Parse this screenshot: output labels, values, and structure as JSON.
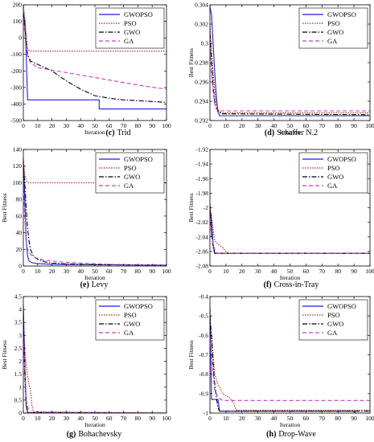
{
  "legend_entries": [
    "GWOPSO",
    "PSO",
    "GWO",
    "GA"
  ],
  "xlabel": "Iteration",
  "ylabel": "Best Fitness",
  "series_styles": [
    {
      "name": "GWOPSO",
      "color": "#1f1fd6",
      "dash": "solid"
    },
    {
      "name": "PSO",
      "color": "#a52a2a",
      "dash": "dotted"
    },
    {
      "name": "GWO",
      "color": "#000000",
      "dash": "dashdot"
    },
    {
      "name": "GA",
      "color": "#c040c0",
      "dash": "dashed"
    }
  ],
  "chart_data": [
    {
      "type": "line",
      "id": "c",
      "caption_letter": "(c)",
      "caption_name": "Trid",
      "xlabel": "Iteration",
      "ylabel": "",
      "xlim": [
        0,
        100
      ],
      "ylim": [
        -500,
        200
      ],
      "xticks": [
        0,
        10,
        20,
        30,
        40,
        50,
        60,
        70,
        80,
        90,
        100
      ],
      "yticks": [
        -500,
        -400,
        -300,
        -200,
        -100,
        0,
        100,
        200
      ],
      "ytick_labels": [
        "-500",
        "-400",
        "-300",
        "-200",
        "-100",
        "0",
        "100",
        "200"
      ],
      "series": [
        {
          "name": "GWOPSO",
          "x": [
            0,
            1,
            2,
            3,
            53,
            53,
            100
          ],
          "y": [
            150,
            100,
            -100,
            -375,
            -375,
            -430,
            -430
          ]
        },
        {
          "name": "PSO",
          "x": [
            0,
            1,
            2,
            3,
            5,
            100
          ],
          "y": [
            200,
            120,
            20,
            -70,
            -80,
            -80
          ]
        },
        {
          "name": "GWO",
          "x": [
            0,
            1,
            2,
            3,
            5,
            10,
            20,
            30,
            40,
            50,
            60,
            70,
            80,
            90,
            100
          ],
          "y": [
            150,
            80,
            -20,
            -100,
            -140,
            -160,
            -200,
            -260,
            -310,
            -350,
            -365,
            -375,
            -380,
            -385,
            -390
          ]
        },
        {
          "name": "GA",
          "x": [
            0,
            1,
            2,
            3,
            5,
            10,
            20,
            30,
            40,
            50,
            60,
            70,
            80,
            90,
            100
          ],
          "y": [
            100,
            40,
            -60,
            -110,
            -150,
            -180,
            -195,
            -210,
            -225,
            -240,
            -255,
            -270,
            -285,
            -298,
            -310
          ]
        }
      ],
      "legend": "top-right",
      "grid": false
    },
    {
      "type": "line",
      "id": "d",
      "caption_letter": "(d)",
      "caption_name": "Schaffer N.2",
      "xlabel": "Iteration",
      "ylabel": "Best Fitness",
      "xlim": [
        0,
        100
      ],
      "ylim": [
        0.292,
        0.304
      ],
      "xticks": [
        0,
        10,
        20,
        30,
        40,
        50,
        60,
        70,
        80,
        90,
        100
      ],
      "yticks": [
        0.292,
        0.294,
        0.296,
        0.298,
        0.3,
        0.302,
        0.304
      ],
      "ytick_labels": [
        "0.292",
        "0.294",
        "0.296",
        "0.298",
        "0.3",
        "0.302",
        "0.304"
      ],
      "series": [
        {
          "name": "GWOPSO",
          "x": [
            0,
            1,
            2,
            3,
            4,
            5,
            6,
            100
          ],
          "y": [
            0.3038,
            0.303,
            0.3,
            0.297,
            0.2945,
            0.2929,
            0.2925,
            0.2925
          ]
        },
        {
          "name": "PSO",
          "x": [
            0,
            1,
            2,
            3,
            4,
            5,
            6,
            8,
            100
          ],
          "y": [
            0.302,
            0.2995,
            0.297,
            0.295,
            0.2938,
            0.2932,
            0.2929,
            0.2928,
            0.2928
          ]
        },
        {
          "name": "GWO",
          "x": [
            0,
            1,
            2,
            3,
            4,
            5,
            7,
            100
          ],
          "y": [
            0.301,
            0.298,
            0.2955,
            0.294,
            0.2933,
            0.293,
            0.2927,
            0.2926
          ]
        },
        {
          "name": "GA",
          "x": [
            0,
            1,
            2,
            3,
            4,
            6,
            100
          ],
          "y": [
            0.3,
            0.297,
            0.295,
            0.2937,
            0.2932,
            0.293,
            0.293
          ]
        }
      ],
      "legend": "top-right",
      "grid": false
    },
    {
      "type": "line",
      "id": "e",
      "caption_letter": "(e)",
      "caption_name": "Levy",
      "xlabel": "Iteration",
      "ylabel": "Best Fitness",
      "xlim": [
        0,
        100
      ],
      "ylim": [
        0,
        140
      ],
      "xticks": [
        0,
        10,
        20,
        30,
        40,
        50,
        60,
        70,
        80,
        90,
        100
      ],
      "yticks": [
        0,
        20,
        40,
        60,
        80,
        100,
        120,
        140
      ],
      "ytick_labels": [
        "0",
        "20",
        "40",
        "60",
        "80",
        "100",
        "120",
        "140"
      ],
      "series": [
        {
          "name": "GWOPSO",
          "x": [
            0,
            1,
            2,
            3,
            4,
            6,
            10,
            20,
            100
          ],
          "y": [
            130,
            80,
            30,
            12,
            6,
            4,
            3,
            2,
            1
          ]
        },
        {
          "name": "PSO",
          "x": [
            0,
            1,
            2,
            3,
            5,
            100
          ],
          "y": [
            128,
            110,
            103,
            100,
            100,
            100
          ]
        },
        {
          "name": "GWO",
          "x": [
            0,
            1,
            2,
            3,
            4,
            5,
            7,
            10,
            15,
            20,
            30,
            50,
            100
          ],
          "y": [
            120,
            100,
            70,
            45,
            30,
            20,
            12,
            8,
            5,
            3.5,
            2.5,
            1.5,
            1
          ]
        },
        {
          "name": "GA",
          "x": [
            0,
            1,
            2,
            3,
            5,
            8,
            15,
            25,
            40,
            60,
            100
          ],
          "y": [
            100,
            60,
            30,
            20,
            14,
            10,
            7,
            5,
            3.5,
            2,
            1
          ]
        }
      ],
      "legend": "top-right",
      "grid": false
    },
    {
      "type": "line",
      "id": "f",
      "caption_letter": "(f)",
      "caption_name": "Cross-in-Tray",
      "xlabel": "Iteration",
      "ylabel": "Best Fitness",
      "xlim": [
        0,
        100
      ],
      "ylim": [
        -2.08,
        -1.92
      ],
      "xticks": [
        0,
        10,
        20,
        30,
        40,
        50,
        60,
        70,
        80,
        90,
        100
      ],
      "yticks": [
        -2.08,
        -2.06,
        -2.04,
        -2.02,
        -2,
        -1.98,
        -1.96,
        -1.94,
        -1.92
      ],
      "ytick_labels": [
        "-2.08",
        "-2.06",
        "-2.04",
        "-2.02",
        "-2",
        "-1.98",
        "-1.96",
        "-1.94",
        "-1.92"
      ],
      "series": [
        {
          "name": "GWOPSO",
          "x": [
            0,
            1,
            2,
            3,
            100
          ],
          "y": [
            -2.0,
            -2.02,
            -2.05,
            -2.0626,
            -2.0626
          ]
        },
        {
          "name": "PSO",
          "x": [
            0,
            1,
            2,
            3,
            5,
            8,
            10,
            12,
            100
          ],
          "y": [
            -2.0,
            -2.01,
            -2.03,
            -2.045,
            -2.05,
            -2.055,
            -2.06,
            -2.0626,
            -2.0626
          ]
        },
        {
          "name": "GWO",
          "x": [
            0,
            1,
            2,
            3,
            100
          ],
          "y": [
            -1.995,
            -2.03,
            -2.055,
            -2.0626,
            -2.0626
          ]
        },
        {
          "name": "GA",
          "x": [
            0,
            1,
            3,
            5,
            100
          ],
          "y": [
            -2.01,
            -2.04,
            -2.058,
            -2.0626,
            -2.0626
          ]
        }
      ],
      "legend": "top-right",
      "grid": false
    },
    {
      "type": "line",
      "id": "g",
      "caption_letter": "(g)",
      "caption_name": "Bohachevsky",
      "xlabel": "Iteration",
      "ylabel": "Best Fitness",
      "xlim": [
        0,
        100
      ],
      "ylim": [
        0,
        4.5
      ],
      "xticks": [
        0,
        10,
        20,
        30,
        40,
        50,
        60,
        70,
        80,
        90,
        100
      ],
      "yticks": [
        0,
        0.5,
        1,
        1.5,
        2,
        2.5,
        3,
        3.5,
        4,
        4.5
      ],
      "ytick_labels": [
        "0",
        "0.5",
        "1",
        "1.5",
        "2",
        "2.5",
        "3",
        "3.5",
        "4",
        "4.5"
      ],
      "series": [
        {
          "name": "GWOPSO",
          "x": [
            0,
            1,
            2,
            3,
            100
          ],
          "y": [
            4.2,
            2.0,
            0.3,
            0.02,
            0.0
          ]
        },
        {
          "name": "PSO",
          "x": [
            0,
            1,
            2,
            3,
            4,
            5,
            6,
            7,
            100
          ],
          "y": [
            3.0,
            2.5,
            1.9,
            1.4,
            1.1,
            0.9,
            0.3,
            0.05,
            0.0
          ]
        },
        {
          "name": "GWO",
          "x": [
            0,
            1,
            2,
            3,
            100
          ],
          "y": [
            3.5,
            1.5,
            0.3,
            0.02,
            0.0
          ]
        },
        {
          "name": "GA",
          "x": [
            0,
            1,
            2,
            4,
            100
          ],
          "y": [
            3.0,
            1.8,
            0.5,
            0.03,
            0.0
          ]
        }
      ],
      "legend": "top-right",
      "grid": false
    },
    {
      "type": "line",
      "id": "h",
      "caption_letter": "(h)",
      "caption_name": "Drop-Wave",
      "xlabel": "Iteration",
      "ylabel": "Best Fitness",
      "xlim": [
        0,
        100
      ],
      "ylim": [
        -1,
        -0.4
      ],
      "xticks": [
        0,
        10,
        20,
        30,
        40,
        50,
        60,
        70,
        80,
        90,
        100
      ],
      "yticks": [
        -1,
        -0.9,
        -0.8,
        -0.7,
        -0.6,
        -0.5,
        -0.4
      ],
      "ytick_labels": [
        "-1",
        "-0.9",
        "-0.8",
        "-0.7",
        "-0.6",
        "-0.5",
        "-0.4"
      ],
      "series": [
        {
          "name": "GWOPSO",
          "x": [
            0,
            1,
            2,
            3,
            5,
            6,
            90,
            91,
            100
          ],
          "y": [
            -0.45,
            -0.93,
            -0.93,
            -0.93,
            -0.93,
            -0.99,
            -0.99,
            -1.0,
            -1.0
          ]
        },
        {
          "name": "PSO",
          "x": [
            0,
            1,
            2,
            3,
            5,
            8,
            12,
            15,
            16,
            17,
            100
          ],
          "y": [
            -0.55,
            -0.6,
            -0.7,
            -0.8,
            -0.85,
            -0.9,
            -0.92,
            -0.95,
            -0.98,
            -0.985,
            -0.985
          ]
        },
        {
          "name": "GWO",
          "x": [
            0,
            1,
            2,
            3,
            4,
            5,
            6,
            100
          ],
          "y": [
            -0.5,
            -0.6,
            -0.75,
            -0.85,
            -0.92,
            -0.97,
            -0.99,
            -0.99
          ]
        },
        {
          "name": "GA",
          "x": [
            0,
            1,
            2,
            3,
            5,
            8,
            100
          ],
          "y": [
            -0.6,
            -0.7,
            -0.8,
            -0.88,
            -0.92,
            -0.935,
            -0.935
          ]
        }
      ],
      "legend": "top-right",
      "grid": false
    }
  ]
}
